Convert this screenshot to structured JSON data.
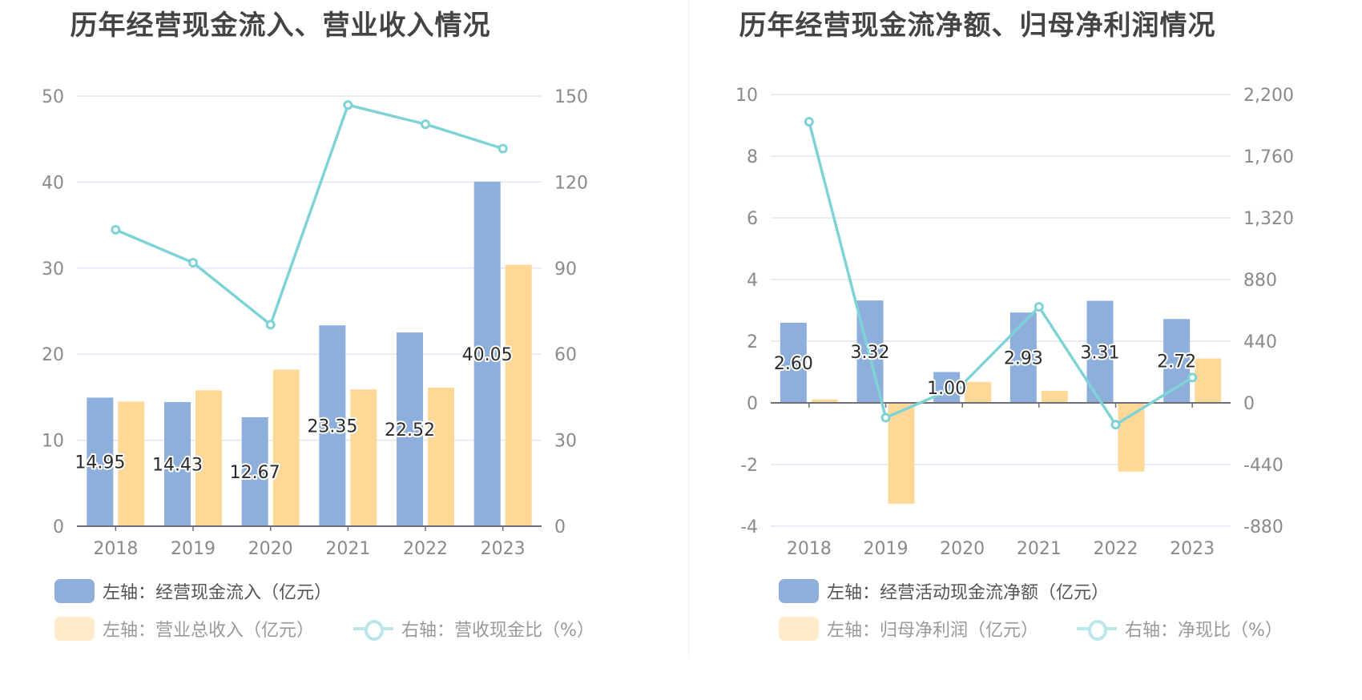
{
  "colors": {
    "blue": "#8eaedb",
    "orange": "#ffd898",
    "line": "#7fd3d6",
    "orange_faded": "#ffebcc",
    "line_faded": "#b9e7ea",
    "grid": "#e0e6f1",
    "axis": "#6e7079"
  },
  "chart_data": [
    {
      "type": "bar",
      "title": "历年经营现金流入、营业收入情况",
      "categories": [
        "2018",
        "2019",
        "2020",
        "2021",
        "2022",
        "2023"
      ],
      "left_axis": {
        "ylim": [
          0,
          50
        ],
        "ticks": [
          "0",
          "10",
          "20",
          "30",
          "40",
          "50"
        ]
      },
      "right_axis": {
        "ylim": [
          0,
          150
        ],
        "ticks": [
          "0",
          "30",
          "60",
          "90",
          "120",
          "150"
        ]
      },
      "grid": true,
      "legend_position": "bottom-left",
      "series": [
        {
          "name": "左轴：经营现金流入（亿元）",
          "type": "bar",
          "axis": "left",
          "values": [
            14.95,
            14.43,
            12.67,
            23.35,
            22.52,
            40.05
          ],
          "labels": [
            "14.95",
            "14.43",
            "12.67",
            "23.35",
            "22.52",
            "40.05"
          ]
        },
        {
          "name": "左轴：营业总收入（亿元）",
          "type": "bar",
          "axis": "left",
          "values": [
            14.5,
            15.8,
            18.2,
            15.9,
            16.1,
            30.4
          ]
        },
        {
          "name": "右轴：营收现金比（%）",
          "type": "line",
          "axis": "right",
          "values": [
            103.4,
            91.9,
            70.3,
            146.9,
            140.2,
            131.7
          ]
        }
      ]
    },
    {
      "type": "bar",
      "title": "历年经营现金流净额、归母净利润情况",
      "categories": [
        "2018",
        "2019",
        "2020",
        "2021",
        "2022",
        "2023"
      ],
      "left_axis": {
        "ylim": [
          -4,
          10
        ],
        "ticks": [
          "-4",
          "-2",
          "0",
          "2",
          "4",
          "6",
          "8",
          "10"
        ]
      },
      "right_axis": {
        "ylim": [
          -880,
          2200
        ],
        "ticks": [
          "-880",
          "-440",
          "0",
          "440",
          "880",
          "1,320",
          "1,760",
          "2,200"
        ]
      },
      "grid": true,
      "legend_position": "bottom-left",
      "series": [
        {
          "name": "左轴：经营活动现金流净额（亿元）",
          "type": "bar",
          "axis": "left",
          "values": [
            2.6,
            3.32,
            1.0,
            2.93,
            3.31,
            2.72
          ],
          "labels": [
            "2.60",
            "3.32",
            "1.00",
            "2.93",
            "3.31",
            "2.72"
          ]
        },
        {
          "name": "左轴：归母净利润（亿元）",
          "type": "bar",
          "axis": "left",
          "values": [
            0.11,
            -3.27,
            0.68,
            0.39,
            -2.23,
            1.44
          ]
        },
        {
          "name": "右轴：净现比（%）",
          "type": "line",
          "axis": "right",
          "values": [
            2006,
            -106,
            131,
            685,
            -156,
            181
          ]
        }
      ]
    }
  ],
  "legends": [
    {
      "items": [
        "左轴：经营现金流入（亿元）",
        "左轴：营业总收入（亿元）",
        "右轴：营收现金比（%）"
      ]
    },
    {
      "items": [
        "左轴：经营活动现金流净额（亿元）",
        "左轴：归母净利润（亿元）",
        "右轴：净现比（%）"
      ]
    }
  ]
}
